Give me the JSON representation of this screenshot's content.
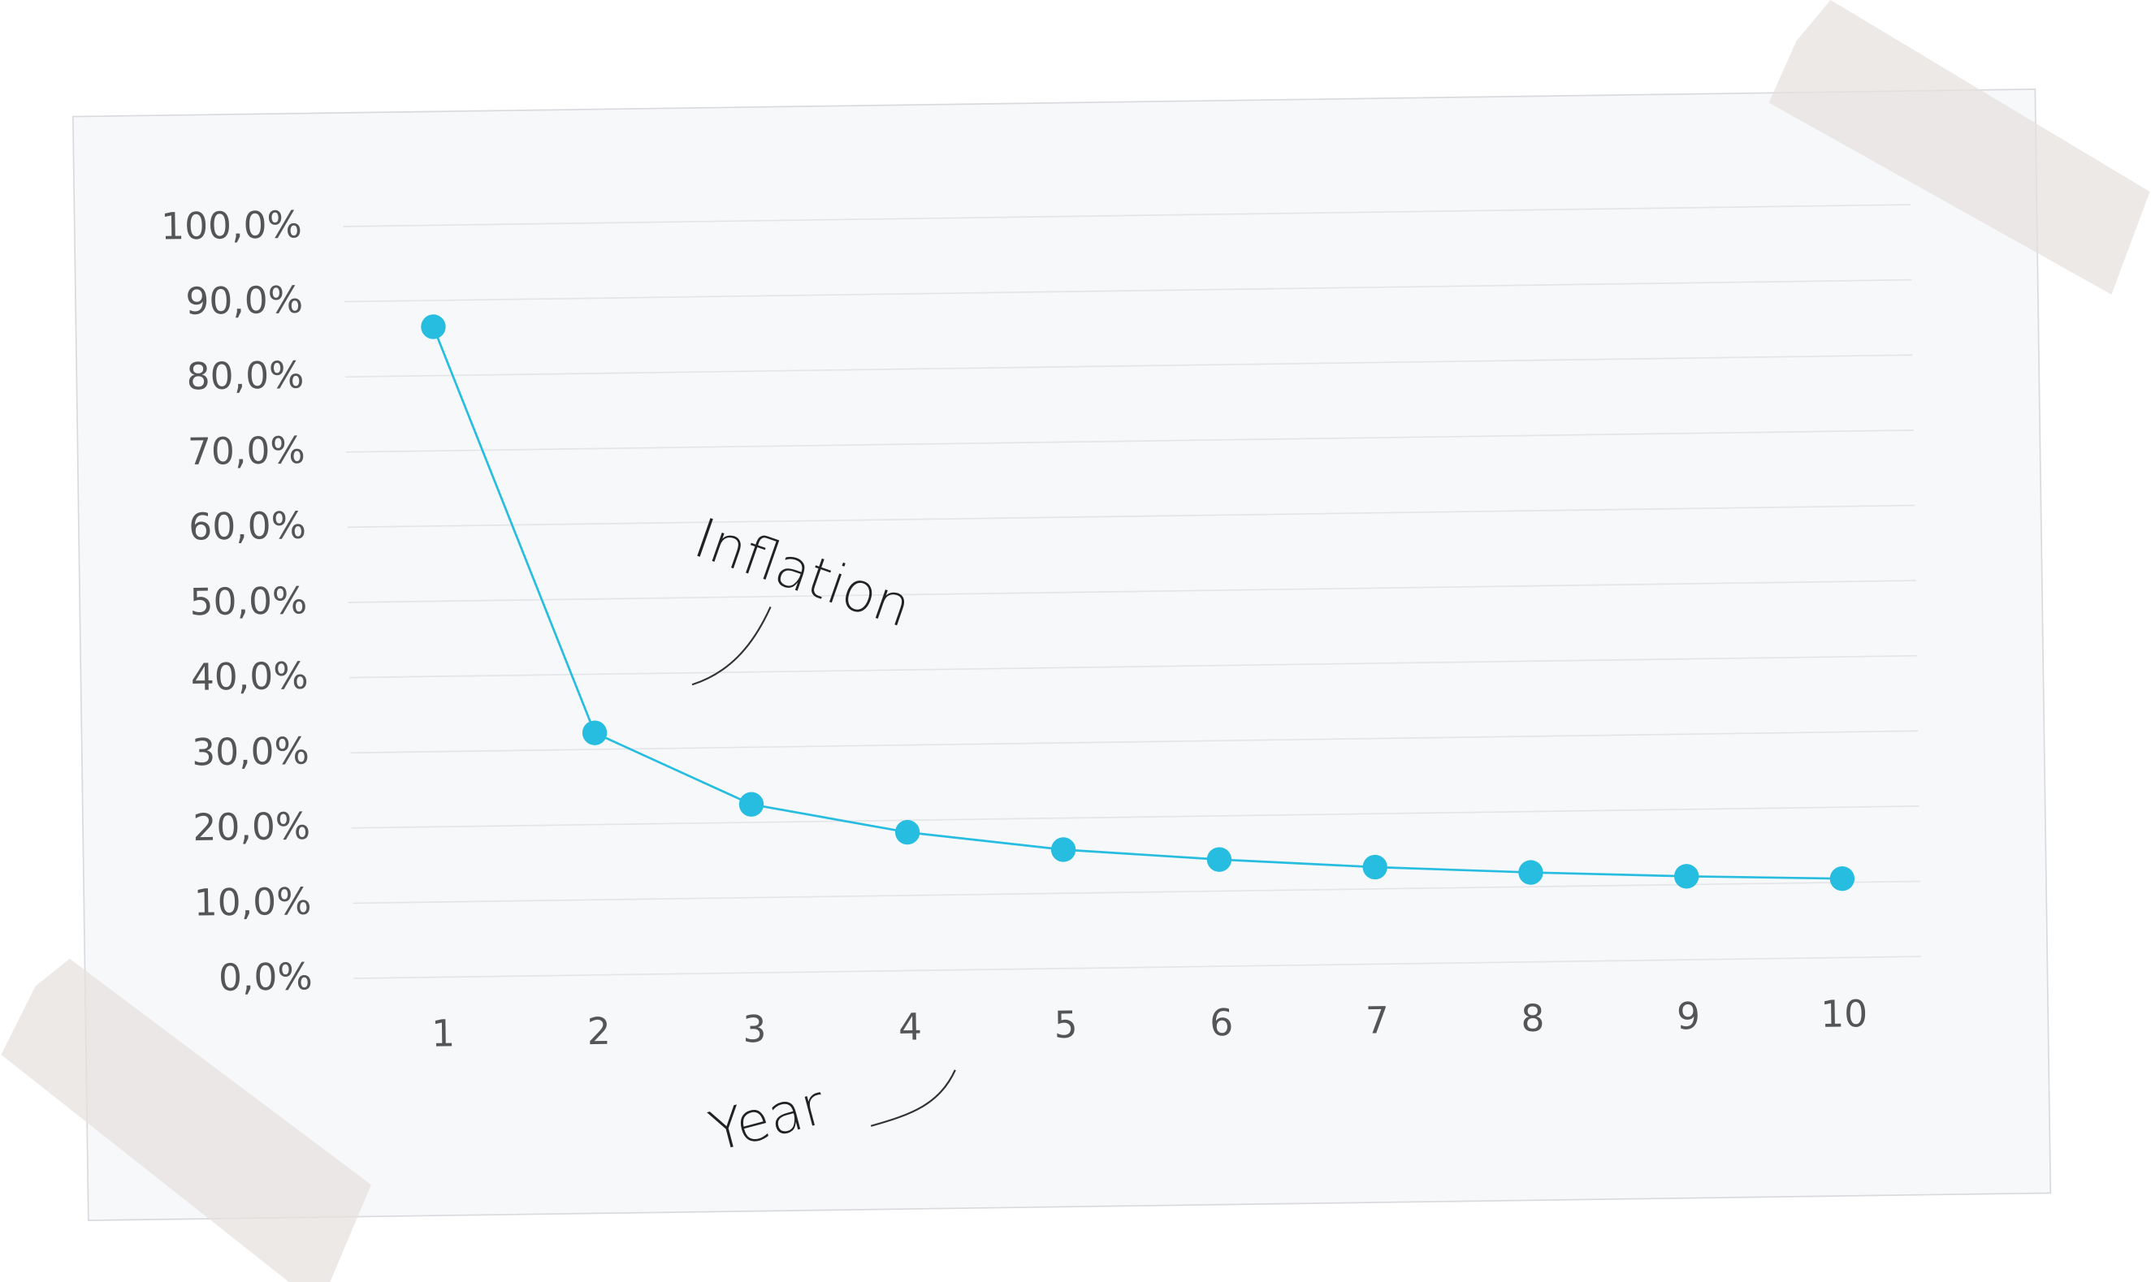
{
  "chart_data": {
    "type": "line",
    "ylabel": "Inflation",
    "xlabel": "Year",
    "categories": [
      "1",
      "2",
      "3",
      "4",
      "5",
      "6",
      "7",
      "8",
      "9",
      "10"
    ],
    "values": [
      86.5,
      32.2,
      22.4,
      18.4,
      15.8,
      14.2,
      12.9,
      11.9,
      11.1,
      10.5
    ],
    "color": "#26bde0",
    "ylim": [
      0,
      100
    ],
    "yticks": [
      {
        "value": 0,
        "label": "0,0%"
      },
      {
        "value": 10,
        "label": "10,0%"
      },
      {
        "value": 20,
        "label": "20,0%"
      },
      {
        "value": 30,
        "label": "30,0%"
      },
      {
        "value": 40,
        "label": "40,0%"
      },
      {
        "value": 50,
        "label": "50,0%"
      },
      {
        "value": 60,
        "label": "60,0%"
      },
      {
        "value": 70,
        "label": "70,0%"
      },
      {
        "value": 80,
        "label": "80,0%"
      },
      {
        "value": 90,
        "label": "90,0%"
      },
      {
        "value": 100,
        "label": "100,0%"
      }
    ],
    "grid": true
  }
}
